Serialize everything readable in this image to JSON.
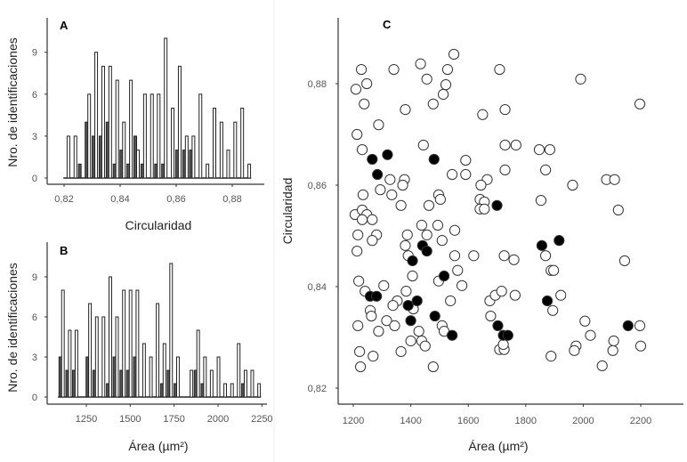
{
  "chart_data": [
    {
      "panel": "A",
      "type": "bar",
      "xlabel": "Circularidad",
      "ylabel": "Nro. de identificaciones",
      "xlim": [
        0.82,
        0.889
      ],
      "ylim": [
        0,
        11.5
      ],
      "xticks": [
        "0,82",
        "0,84",
        "0,86",
        "0,88"
      ],
      "xtick_values": [
        0.82,
        0.84,
        0.86,
        0.88
      ],
      "yticks": [
        "0",
        "3",
        "6",
        "9"
      ],
      "bin_centers": [
        0.8215,
        0.824,
        0.8265,
        0.8289,
        0.8314,
        0.8339,
        0.8364,
        0.8389,
        0.8413,
        0.8438,
        0.8463,
        0.8488,
        0.8513,
        0.8537,
        0.8562,
        0.8587,
        0.8612,
        0.8637,
        0.8661,
        0.8686,
        0.8711,
        0.8736,
        0.8761,
        0.8785,
        0.881,
        0.8835,
        0.886
      ],
      "series": [
        {
          "color": "#ffffff",
          "values": [
            3,
            3,
            0,
            6,
            9,
            8,
            8,
            7,
            4,
            7,
            2,
            6,
            6,
            6,
            10,
            5,
            8,
            3,
            3,
            6,
            1,
            5,
            4,
            2,
            4,
            5,
            1
          ]
        },
        {
          "color": "#555555",
          "values": [
            0,
            0,
            1,
            4,
            3,
            3,
            4,
            1,
            2,
            1,
            3,
            1,
            0,
            1,
            1,
            0,
            2,
            2,
            2,
            0,
            0,
            0,
            0,
            0,
            0,
            0,
            0
          ]
        }
      ]
    },
    {
      "panel": "B",
      "type": "bar",
      "xlabel": "Área (µm²)",
      "ylabel": "Nro. de identificaciones",
      "xlim": [
        1075,
        2270
      ],
      "ylim": [
        0,
        11.5
      ],
      "xticks": [
        "1250",
        "1500",
        "1750",
        "2000",
        "2250"
      ],
      "xtick_values": [
        1250,
        1500,
        1750,
        2000,
        2250
      ],
      "yticks": [
        "0",
        "3",
        "6",
        "9"
      ],
      "bin_centers": [
        1116,
        1155,
        1193,
        1232,
        1270,
        1309,
        1347,
        1386,
        1424,
        1463,
        1501,
        1540,
        1578,
        1617,
        1655,
        1694,
        1732,
        1771,
        1809,
        1848,
        1886,
        1925,
        1963,
        2002,
        2040,
        2079,
        2117,
        2156,
        2194,
        2233
      ],
      "series": [
        {
          "color": "#ffffff",
          "values": [
            8,
            5,
            5,
            0,
            7,
            6,
            6,
            9,
            6,
            8,
            8,
            8,
            4,
            3,
            7,
            4,
            10,
            3,
            0,
            2,
            5,
            3,
            2,
            3,
            1,
            1,
            4,
            2,
            2,
            1
          ]
        },
        {
          "color": "#555555",
          "values": [
            3,
            2,
            2,
            0,
            3,
            2,
            0,
            1,
            3,
            2,
            2,
            3,
            0,
            0,
            0,
            1,
            2,
            1,
            0,
            0,
            2,
            1,
            0,
            0,
            0,
            0,
            0,
            1,
            0,
            0
          ]
        }
      ]
    },
    {
      "panel": "C",
      "type": "scatter",
      "xlabel": "Área (µm²)",
      "ylabel": "Circularidad",
      "xlim": [
        1150,
        2350
      ],
      "ylim": [
        0.8145,
        0.893
      ],
      "xticks": [
        "1200",
        "1400",
        "1600",
        "1800",
        "2000",
        "2200"
      ],
      "xtick_values": [
        1200,
        1400,
        1600,
        1800,
        2000,
        2200
      ],
      "yticks": [
        "0,82",
        "0,84",
        "0,86",
        "0,88"
      ],
      "ytick_values": [
        0.82,
        0.84,
        0.86,
        0.88
      ],
      "series": [
        {
          "color": "#ffffff",
          "points": [
            [
              1228,
              0.8828
            ],
            [
              1341,
              0.8828
            ],
            [
              1434,
              0.8839
            ],
            [
              1550,
              0.8858
            ],
            [
              1528,
              0.8828
            ],
            [
              1709,
              0.8828
            ],
            [
              1247,
              0.88
            ],
            [
              1209,
              0.8789
            ],
            [
              1456,
              0.8809
            ],
            [
              1522,
              0.8798
            ],
            [
              1513,
              0.8779
            ],
            [
              1238,
              0.876
            ],
            [
              1381,
              0.8749
            ],
            [
              1478,
              0.876
            ],
            [
              1650,
              0.8739
            ],
            [
              1728,
              0.8749
            ],
            [
              1288,
              0.8719
            ],
            [
              1213,
              0.87
            ],
            [
              1444,
              0.8679
            ],
            [
              1231,
              0.867
            ],
            [
              1728,
              0.8679
            ],
            [
              1591,
              0.8649
            ],
            [
              1728,
              0.863
            ],
            [
              1544,
              0.8621
            ],
            [
              1591,
              0.8621
            ],
            [
              1328,
              0.8611
            ],
            [
              1378,
              0.8611
            ],
            [
              1372,
              0.86
            ],
            [
              1666,
              0.8611
            ],
            [
              1644,
              0.86
            ],
            [
              1294,
              0.8591
            ],
            [
              1234,
              0.8581
            ],
            [
              1334,
              0.8581
            ],
            [
              1497,
              0.8581
            ],
            [
              1503,
              0.8572
            ],
            [
              1641,
              0.8572
            ],
            [
              1656,
              0.8567
            ],
            [
              1366,
              0.856
            ],
            [
              1463,
              0.856
            ],
            [
              1206,
              0.8542
            ],
            [
              1231,
              0.8551
            ],
            [
              1247,
              0.8542
            ],
            [
              1641,
              0.8553
            ],
            [
              1656,
              0.8553
            ],
            [
              1231,
              0.8532
            ],
            [
              1266,
              0.8532
            ],
            [
              1438,
              0.8521
            ],
            [
              1494,
              0.8521
            ],
            [
              1553,
              0.8511
            ],
            [
              1216,
              0.8502
            ],
            [
              1281,
              0.8502
            ],
            [
              1266,
              0.8491
            ],
            [
              1388,
              0.8502
            ],
            [
              1456,
              0.8502
            ],
            [
              1381,
              0.8481
            ],
            [
              1509,
              0.8491
            ],
            [
              1213,
              0.847
            ],
            [
              1391,
              0.8461
            ],
            [
              1553,
              0.8461
            ],
            [
              1619,
              0.8461
            ],
            [
              1725,
              0.8461
            ],
            [
              1406,
              0.8421
            ],
            [
              1563,
              0.8432
            ],
            [
              1497,
              0.8411
            ],
            [
              1219,
              0.8411
            ],
            [
              1306,
              0.8402
            ],
            [
              1578,
              0.8402
            ],
            [
              1241,
              0.8391
            ],
            [
              1384,
              0.8391
            ],
            [
              1353,
              0.8372
            ],
            [
              1338,
              0.8363
            ],
            [
              1538,
              0.8372
            ],
            [
              1259,
              0.8353
            ],
            [
              1263,
              0.8342
            ],
            [
              1409,
              0.8356
            ],
            [
              1316,
              0.8333
            ],
            [
              1344,
              0.8323
            ],
            [
              1216,
              0.8323
            ],
            [
              1288,
              0.8312
            ],
            [
              1428,
              0.8312
            ],
            [
              1509,
              0.8323
            ],
            [
              1516,
              0.8312
            ],
            [
              1400,
              0.8293
            ],
            [
              1438,
              0.8293
            ],
            [
              1450,
              0.8283
            ],
            [
              1222,
              0.8272
            ],
            [
              1269,
              0.8263
            ],
            [
              1366,
              0.8272
            ],
            [
              1225,
              0.8242
            ],
            [
              1478,
              0.8242
            ],
            [
              1675,
              0.8372
            ],
            [
              1694,
              0.8383
            ],
            [
              1716,
              0.8391
            ],
            [
              1678,
              0.8342
            ],
            [
              1709,
              0.8276
            ],
            [
              1725,
              0.8276
            ],
            [
              1722,
              0.8286
            ],
            [
              1991,
              0.8809
            ],
            [
              2197,
              0.876
            ],
            [
              1766,
              0.8679
            ],
            [
              1847,
              0.867
            ],
            [
              1884,
              0.867
            ],
            [
              1869,
              0.863
            ],
            [
              1963,
              0.86
            ],
            [
              2081,
              0.8611
            ],
            [
              2109,
              0.8611
            ],
            [
              1853,
              0.857
            ],
            [
              2122,
              0.8551
            ],
            [
              1759,
              0.8453
            ],
            [
              1869,
              0.8461
            ],
            [
              1888,
              0.8432
            ],
            [
              1897,
              0.8432
            ],
            [
              2144,
              0.8451
            ],
            [
              1763,
              0.8383
            ],
            [
              1922,
              0.8383
            ],
            [
              1894,
              0.8353
            ],
            [
              2006,
              0.8332
            ],
            [
              2025,
              0.8304
            ],
            [
              1975,
              0.8283
            ],
            [
              1969,
              0.8274
            ],
            [
              2106,
              0.8293
            ],
            [
              2103,
              0.8274
            ],
            [
              2197,
              0.8323
            ],
            [
              2200,
              0.8283
            ],
            [
              1888,
              0.8263
            ],
            [
              2066,
              0.8244
            ]
          ]
        },
        {
          "color": "#000000",
          "points": [
            [
              1266,
              0.8651
            ],
            [
              1319,
              0.866
            ],
            [
              1481,
              0.8651
            ],
            [
              1284,
              0.8621
            ],
            [
              1700,
              0.856
            ],
            [
              1441,
              0.8481
            ],
            [
              1456,
              0.847
            ],
            [
              1406,
              0.8451
            ],
            [
              1516,
              0.8421
            ],
            [
              1259,
              0.8381
            ],
            [
              1281,
              0.8381
            ],
            [
              1422,
              0.8372
            ],
            [
              1391,
              0.8363
            ],
            [
              1400,
              0.8333
            ],
            [
              1484,
              0.8342
            ],
            [
              1544,
              0.8304
            ],
            [
              1703,
              0.8323
            ],
            [
              1722,
              0.8304
            ],
            [
              1738,
              0.8304
            ],
            [
              1856,
              0.8481
            ],
            [
              1916,
              0.8491
            ],
            [
              1875,
              0.8372
            ],
            [
              2156,
              0.8323
            ]
          ]
        }
      ]
    }
  ]
}
